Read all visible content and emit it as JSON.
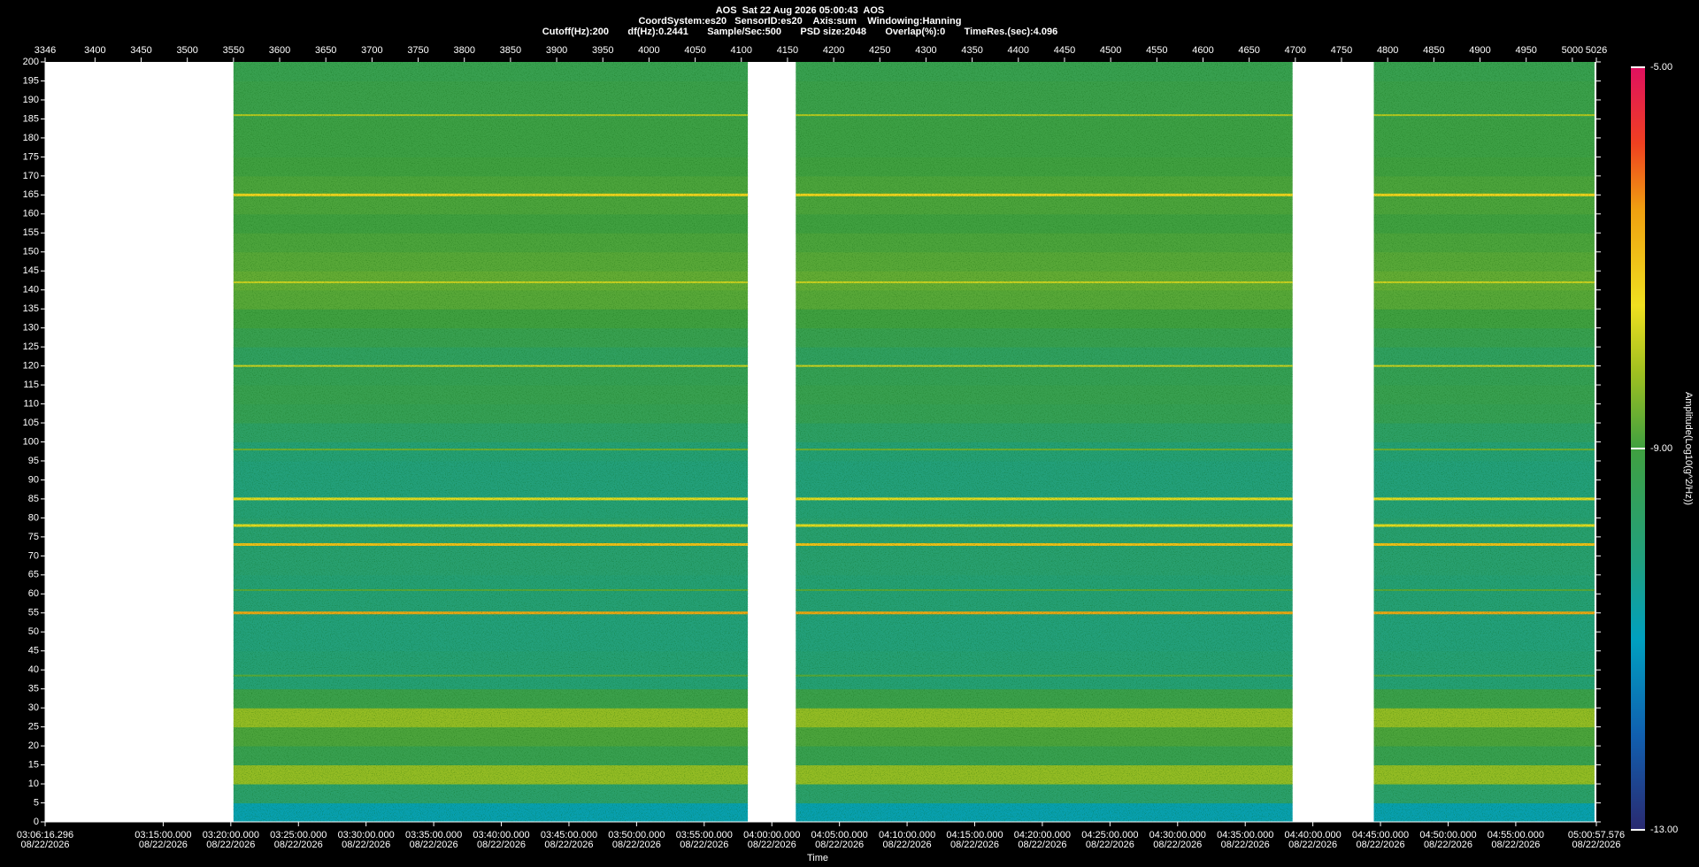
{
  "chart_data": {
    "type": "spectrogram",
    "title": "AOS  Sat 22 Aug 2026 05:00:43  AOS",
    "subtitle": "CoordSystem:es20   SensorID:es20    Axis:sum    Windowing:Hanning",
    "info": "Cutoff(Hz):200       df(Hz):0.2441       Sample/Sec:500       PSD size:2048       Overlap(%):0       TimeRes.(sec):4.096",
    "xlabel": "Time",
    "date_label": "08/22/2026",
    "colorbar_label": "Amplitude(Log10(g^2/Hz))",
    "xlim": [
      3346,
      5026
    ],
    "ylim": [
      0,
      200
    ],
    "top_xticks": [
      3346,
      3400,
      3450,
      3500,
      3550,
      3600,
      3650,
      3700,
      3750,
      3800,
      3850,
      3900,
      3950,
      4000,
      4050,
      4100,
      4150,
      4200,
      4250,
      4300,
      4350,
      4400,
      4450,
      4500,
      4550,
      4600,
      4650,
      4700,
      4750,
      4800,
      4850,
      4900,
      4950,
      5000,
      5026
    ],
    "xticks": [
      {
        "value": 3346,
        "label": "03:06:16.296"
      },
      {
        "value": 3473.86,
        "label": "03:15:00.000"
      },
      {
        "value": 3547.1,
        "label": "03:20:00.000"
      },
      {
        "value": 3620.34,
        "label": "03:25:00.000"
      },
      {
        "value": 3693.58,
        "label": "03:30:00.000"
      },
      {
        "value": 3766.83,
        "label": "03:35:00.000"
      },
      {
        "value": 3840.07,
        "label": "03:40:00.000"
      },
      {
        "value": 3913.31,
        "label": "03:45:00.000"
      },
      {
        "value": 3986.55,
        "label": "03:50:00.000"
      },
      {
        "value": 4059.79,
        "label": "03:55:00.000"
      },
      {
        "value": 4133.04,
        "label": "04:00:00.000"
      },
      {
        "value": 4206.28,
        "label": "04:05:00.000"
      },
      {
        "value": 4279.52,
        "label": "04:10:00.000"
      },
      {
        "value": 4352.76,
        "label": "04:15:00.000"
      },
      {
        "value": 4426.0,
        "label": "04:20:00.000"
      },
      {
        "value": 4499.25,
        "label": "04:25:00.000"
      },
      {
        "value": 4572.49,
        "label": "04:30:00.000"
      },
      {
        "value": 4645.73,
        "label": "04:35:00.000"
      },
      {
        "value": 4718.97,
        "label": "04:40:00.000"
      },
      {
        "value": 4792.21,
        "label": "04:45:00.000"
      },
      {
        "value": 4865.46,
        "label": "04:50:00.000"
      },
      {
        "value": 4938.7,
        "label": "04:55:00.000"
      },
      {
        "value": 5026,
        "label": "05:00:57.576"
      }
    ],
    "yticks": [
      0,
      5,
      10,
      15,
      20,
      25,
      30,
      35,
      40,
      45,
      50,
      55,
      60,
      65,
      70,
      75,
      80,
      85,
      90,
      95,
      100,
      105,
      110,
      115,
      120,
      125,
      130,
      135,
      140,
      145,
      150,
      155,
      160,
      165,
      170,
      175,
      180,
      185,
      190,
      195,
      200
    ],
    "segments": [
      [
        3550,
        4107
      ],
      [
        4159,
        4697
      ],
      [
        4785,
        5024
      ]
    ],
    "y_bins": [
      0,
      5,
      10,
      15,
      20,
      25,
      30,
      35,
      40,
      45,
      50,
      55,
      60,
      65,
      70,
      75,
      80,
      85,
      90,
      95,
      100,
      105,
      110,
      115,
      120,
      125,
      130,
      135,
      140,
      145,
      150,
      155,
      160,
      165,
      170,
      175,
      180,
      185,
      190,
      195,
      200
    ],
    "band_values": [
      -10.8,
      -9.8,
      -8.3,
      -9.3,
      -8.9,
      -8.3,
      -9.2,
      -10.0,
      -10.0,
      -10.1,
      -10.1,
      -10.0,
      -10.0,
      -9.9,
      -9.9,
      -9.9,
      -10.0,
      -10.1,
      -10.1,
      -10.0,
      -9.7,
      -9.4,
      -9.3,
      -9.4,
      -9.6,
      -9.3,
      -9.0,
      -8.8,
      -8.7,
      -8.8,
      -8.9,
      -9.0,
      -8.9,
      -8.9,
      -9.0,
      -9.1,
      -9.1,
      -9.2,
      -9.2,
      -9.3
    ],
    "lines": [
      {
        "freq": 186,
        "value": -8.0
      },
      {
        "freq": 165,
        "value": -7.3
      },
      {
        "freq": 142,
        "value": -7.8
      },
      {
        "freq": 120,
        "value": -7.8
      },
      {
        "freq": 98,
        "value": -8.6
      },
      {
        "freq": 85,
        "value": -7.6
      },
      {
        "freq": 78,
        "value": -7.6
      },
      {
        "freq": 73,
        "value": -7.0
      },
      {
        "freq": 61,
        "value": -8.8
      },
      {
        "freq": 55,
        "value": -6.6
      },
      {
        "freq": 38.5,
        "value": -8.8
      }
    ],
    "clim": [
      -13,
      -5
    ],
    "cticks": [
      {
        "value": -5,
        "label": "-5.00"
      },
      {
        "value": -9,
        "label": "-9.00"
      },
      {
        "value": -13,
        "label": "-13.00"
      }
    ],
    "colormap": [
      {
        "value": -13,
        "color": "#2a2a70"
      },
      {
        "value": -12,
        "color": "#1060b0"
      },
      {
        "value": -11,
        "color": "#00a0c0"
      },
      {
        "value": -10.2,
        "color": "#20a080"
      },
      {
        "value": -9,
        "color": "#40a040"
      },
      {
        "value": -8.2,
        "color": "#a0c020"
      },
      {
        "value": -7.5,
        "color": "#f0e020"
      },
      {
        "value": -6.5,
        "color": "#f0a010"
      },
      {
        "value": -5.8,
        "color": "#f04020"
      },
      {
        "value": -5,
        "color": "#e01060"
      }
    ]
  }
}
